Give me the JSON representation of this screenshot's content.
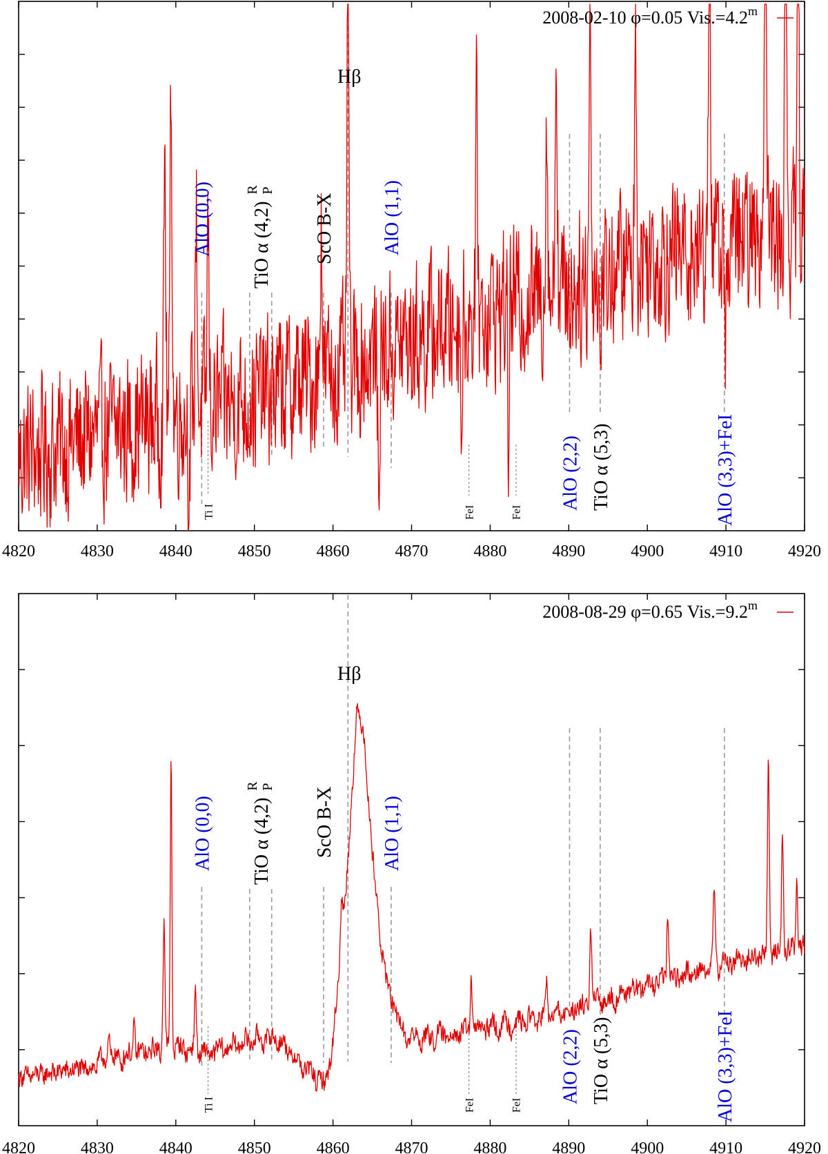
{
  "chart_data": [
    {
      "type": "line",
      "title": "2008-02-10 φ=0.05 Vis.=4.2m",
      "legend": {
        "text": "2008-02-10 φ=0.05 Vis.=4.2",
        "superscript": "m",
        "color": "#e00000",
        "placement": "top-right"
      },
      "xlim": [
        4820,
        4920
      ],
      "ylim": [
        0,
        10
      ],
      "xticks": [
        "4820",
        "4830",
        "4840",
        "4850",
        "4860",
        "4870",
        "4880",
        "4890",
        "4900",
        "4910",
        "4920"
      ],
      "ytick_count": 9,
      "xlabel": "",
      "ylabel": "",
      "series": [
        {
          "name": "2008-02-10",
          "color": "#e00000",
          "style": "noisy",
          "baseline": [
            [
              4820,
              1.4
            ],
            [
              4840,
              2.2
            ],
            [
              4850,
              2.5
            ],
            [
              4860,
              3.0
            ],
            [
              4870,
              3.6
            ],
            [
              4880,
              4.2
            ],
            [
              4890,
              4.6
            ],
            [
              4900,
              5.2
            ],
            [
              4910,
              5.4
            ],
            [
              4920,
              5.7
            ]
          ],
          "noise": 1.4,
          "peaks": [
            [
              4838.6,
              5.0,
              0.12
            ],
            [
              4839.4,
              6.4,
              0.12
            ],
            [
              4842.6,
              4.0,
              0.12
            ],
            [
              4844.1,
              3.5,
              0.12
            ],
            [
              4858.5,
              3.3,
              0.12
            ],
            [
              4861.9,
              9.3,
              0.1
            ],
            [
              4878.3,
              3.8,
              0.12
            ],
            [
              4887.2,
              3.5,
              0.12
            ],
            [
              4888.4,
              5.1,
              0.12
            ],
            [
              4892.7,
              4.8,
              0.12
            ],
            [
              4898.5,
              4.3,
              0.12
            ],
            [
              4907.9,
              7.2,
              0.12
            ],
            [
              4915.0,
              9.0,
              0.12
            ],
            [
              4917.6,
              7.6,
              0.12
            ],
            [
              4919.2,
              7.2,
              0.12
            ]
          ],
          "dips": [
            [
              4841.7,
              -2.0,
              0.1
            ],
            [
              4865.8,
              -2.8,
              0.1
            ],
            [
              4876.4,
              -2.3,
              0.08
            ],
            [
              4882.3,
              -3.0,
              0.08
            ],
            [
              4894.0,
              -1.6,
              0.1
            ],
            [
              4909.9,
              -2.6,
              0.08
            ]
          ]
        }
      ],
      "annotations": [
        {
          "text": "Hβ",
          "x": 4861.9,
          "rotate": false,
          "color": "black"
        },
        {
          "text": "AlO (0,0)",
          "x": 4843.3,
          "rotate": true,
          "color": "blue"
        },
        {
          "text": "TiO α (4,2)",
          "x": 4850.8,
          "rotate": true,
          "color": "black",
          "branches": [
            "R",
            "P"
          ]
        },
        {
          "text": "ScO B-X",
          "x": 4858.8,
          "rotate": true,
          "color": "black"
        },
        {
          "text": "AlO (1,1)",
          "x": 4867.4,
          "rotate": true,
          "color": "blue"
        },
        {
          "text": "AlO (2,2)",
          "x": 4890.1,
          "rotate": true,
          "color": "blue"
        },
        {
          "text": "TiO α (5,3)",
          "x": 4894.0,
          "rotate": true,
          "color": "black"
        },
        {
          "text": "AlO (3,3)+FeI",
          "x": 4909.8,
          "rotate": true,
          "color": "blue"
        },
        {
          "text": "Ti I",
          "x": 4844.1,
          "rotate": true,
          "color": "black",
          "small": true
        },
        {
          "text": "FeI",
          "x": 4877.3,
          "rotate": true,
          "color": "black",
          "small": true
        },
        {
          "text": "FeI",
          "x": 4883.3,
          "rotate": true,
          "color": "black",
          "small": true
        }
      ]
    },
    {
      "type": "line",
      "title": "2008-08-29 φ=0.65 Vis.=9.2m",
      "legend": {
        "text": "2008-08-29 φ=0.65 Vis.=9.2",
        "superscript": "m",
        "color": "#e00000",
        "placement": "top-right"
      },
      "xlim": [
        4820,
        4920
      ],
      "ylim": [
        0,
        7
      ],
      "xticks": [
        "4820",
        "4830",
        "4840",
        "4850",
        "4860",
        "4870",
        "4880",
        "4890",
        "4900",
        "4910",
        "4920"
      ],
      "ytick_count": 6,
      "xlabel": "",
      "ylabel": "",
      "series": [
        {
          "name": "2008-08-29",
          "color": "#e00000",
          "style": "smooth",
          "baseline": [
            [
              4820,
              0.6
            ],
            [
              4830,
              0.75
            ],
            [
              4840,
              0.95
            ],
            [
              4844,
              0.85
            ],
            [
              4850,
              1.05
            ],
            [
              4853,
              1.05
            ],
            [
              4856,
              0.7
            ],
            [
              4859,
              0.45
            ],
            [
              4860,
              1.0
            ],
            [
              4861,
              2.2
            ],
            [
              4862,
              3.5
            ],
            [
              4863,
              5.4
            ],
            [
              4864,
              5.0
            ],
            [
              4865,
              3.5
            ],
            [
              4866,
              2.4
            ],
            [
              4867,
              1.7
            ],
            [
              4869,
              1.1
            ],
            [
              4871,
              1.05
            ],
            [
              4880,
              1.2
            ],
            [
              4890,
              1.4
            ],
            [
              4900,
              1.75
            ],
            [
              4910,
              2.05
            ],
            [
              4920,
              2.25
            ]
          ],
          "noise": 0.12,
          "peaks": [
            [
              4831.5,
              0.35,
              0.12
            ],
            [
              4834.7,
              0.45,
              0.12
            ],
            [
              4838.5,
              1.75,
              0.12
            ],
            [
              4839.4,
              3.9,
              0.1
            ],
            [
              4842.5,
              0.8,
              0.12
            ],
            [
              4861.1,
              0.6,
              0.15
            ],
            [
              4877.6,
              0.7,
              0.12
            ],
            [
              4887.2,
              0.45,
              0.12
            ],
            [
              4892.8,
              1.05,
              0.12
            ],
            [
              4902.6,
              0.95,
              0.12
            ],
            [
              4908.5,
              1.05,
              0.12
            ],
            [
              4915.4,
              2.5,
              0.12
            ],
            [
              4917.2,
              1.6,
              0.12
            ],
            [
              4919.0,
              0.9,
              0.12
            ]
          ],
          "dips": []
        }
      ],
      "annotations": [
        {
          "text": "Hβ",
          "x": 4861.9,
          "rotate": false,
          "color": "black"
        },
        {
          "text": "AlO (0,0)",
          "x": 4843.3,
          "rotate": true,
          "color": "blue"
        },
        {
          "text": "TiO α (4,2)",
          "x": 4850.8,
          "rotate": true,
          "color": "black",
          "branches": [
            "R",
            "P"
          ]
        },
        {
          "text": "ScO B-X",
          "x": 4858.8,
          "rotate": true,
          "color": "black"
        },
        {
          "text": "AlO (1,1)",
          "x": 4867.4,
          "rotate": true,
          "color": "blue"
        },
        {
          "text": "AlO (2,2)",
          "x": 4890.1,
          "rotate": true,
          "color": "blue"
        },
        {
          "text": "TiO α (5,3)",
          "x": 4894.0,
          "rotate": true,
          "color": "black"
        },
        {
          "text": "AlO (3,3)+FeI",
          "x": 4909.8,
          "rotate": true,
          "color": "blue"
        },
        {
          "text": "Ti I",
          "x": 4844.1,
          "rotate": true,
          "color": "black",
          "small": true
        },
        {
          "text": "FeI",
          "x": 4877.3,
          "rotate": true,
          "color": "black",
          "small": true
        },
        {
          "text": "FeI",
          "x": 4883.3,
          "rotate": true,
          "color": "black",
          "small": true
        }
      ]
    }
  ],
  "colors": {
    "accent": "#e00000",
    "blue_label": "#0000dd",
    "black_label": "#000000",
    "guide": "#999999"
  }
}
